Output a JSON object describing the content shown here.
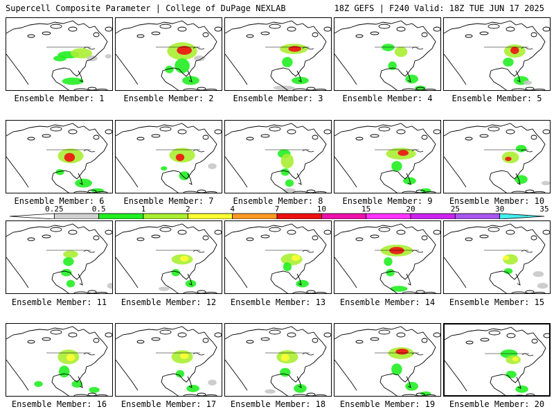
{
  "header": {
    "left": "Supercell Composite Parameter | College of DuPage NEXLAB",
    "right": "18Z GEFS | F240 Valid: 18Z TUE JUN 17 2025"
  },
  "member_label_prefix": "Ensemble Member: ",
  "members": [
    {
      "id": "1",
      "blobs": [
        [
          0.58,
          0.5,
          0.1,
          0.05,
          1
        ],
        [
          0.7,
          0.48,
          0.1,
          0.07,
          2
        ],
        [
          0.5,
          0.55,
          0.06,
          0.04,
          1
        ],
        [
          0.8,
          0.55,
          0.05,
          0.04,
          0
        ],
        [
          0.62,
          0.86,
          0.1,
          0.05,
          1
        ],
        [
          0.95,
          0.52,
          0.03,
          0.03,
          0
        ]
      ]
    },
    {
      "id": "2",
      "blobs": [
        [
          0.62,
          0.45,
          0.14,
          0.12,
          2
        ],
        [
          0.64,
          0.44,
          0.07,
          0.06,
          4
        ],
        [
          0.62,
          0.65,
          0.07,
          0.1,
          1
        ],
        [
          0.5,
          0.7,
          0.04,
          0.05,
          1
        ],
        [
          0.7,
          0.85,
          0.08,
          0.06,
          1
        ],
        [
          0.78,
          0.55,
          0.05,
          0.04,
          0
        ]
      ]
    },
    {
      "id": "3",
      "blobs": [
        [
          0.64,
          0.42,
          0.13,
          0.07,
          2
        ],
        [
          0.65,
          0.42,
          0.06,
          0.04,
          4
        ],
        [
          0.58,
          0.6,
          0.05,
          0.07,
          1
        ],
        [
          0.7,
          0.85,
          0.08,
          0.05,
          1
        ],
        [
          0.55,
          0.95,
          0.1,
          0.03,
          0
        ]
      ]
    },
    {
      "id": "4",
      "blobs": [
        [
          0.5,
          0.4,
          0.06,
          0.05,
          1
        ],
        [
          0.62,
          0.46,
          0.06,
          0.07,
          2
        ],
        [
          0.54,
          0.65,
          0.04,
          0.06,
          1
        ],
        [
          0.72,
          0.83,
          0.06,
          0.06,
          1
        ],
        [
          0.8,
          0.95,
          0.05,
          0.03,
          1
        ]
      ]
    },
    {
      "id": "5",
      "blobs": [
        [
          0.66,
          0.45,
          0.1,
          0.09,
          2
        ],
        [
          0.66,
          0.44,
          0.04,
          0.05,
          4
        ],
        [
          0.6,
          0.6,
          0.05,
          0.06,
          1
        ],
        [
          0.72,
          0.85,
          0.07,
          0.06,
          1
        ],
        [
          0.78,
          0.88,
          0.04,
          0.03,
          0
        ]
      ]
    },
    {
      "id": "6",
      "blobs": [
        [
          0.6,
          0.48,
          0.12,
          0.1,
          2
        ],
        [
          0.59,
          0.5,
          0.05,
          0.06,
          4
        ],
        [
          0.72,
          0.85,
          0.08,
          0.06,
          1
        ],
        [
          0.85,
          0.95,
          0.06,
          0.03,
          1
        ],
        [
          0.5,
          0.7,
          0.04,
          0.04,
          1
        ]
      ]
    },
    {
      "id": "7",
      "blobs": [
        [
          0.62,
          0.47,
          0.12,
          0.1,
          2
        ],
        [
          0.6,
          0.5,
          0.04,
          0.05,
          4
        ],
        [
          0.64,
          0.75,
          0.05,
          0.06,
          1
        ],
        [
          0.9,
          0.62,
          0.04,
          0.04,
          0
        ],
        [
          0.45,
          0.65,
          0.03,
          0.03,
          1
        ]
      ]
    },
    {
      "id": "8",
      "blobs": [
        [
          0.55,
          0.45,
          0.06,
          0.06,
          1
        ],
        [
          0.58,
          0.55,
          0.06,
          0.1,
          2
        ],
        [
          0.56,
          0.7,
          0.04,
          0.05,
          1
        ],
        [
          0.6,
          0.85,
          0.04,
          0.05,
          1
        ],
        [
          0.6,
          0.95,
          0.06,
          0.03,
          0
        ]
      ]
    },
    {
      "id": "9",
      "blobs": [
        [
          0.62,
          0.45,
          0.14,
          0.08,
          2
        ],
        [
          0.64,
          0.44,
          0.05,
          0.04,
          4
        ],
        [
          0.58,
          0.62,
          0.05,
          0.07,
          1
        ],
        [
          0.7,
          0.82,
          0.06,
          0.05,
          1
        ],
        [
          0.85,
          0.95,
          0.05,
          0.03,
          1
        ]
      ]
    },
    {
      "id": "10",
      "blobs": [
        [
          0.72,
          0.38,
          0.05,
          0.05,
          1
        ],
        [
          0.62,
          0.5,
          0.08,
          0.08,
          2
        ],
        [
          0.6,
          0.52,
          0.03,
          0.03,
          4
        ],
        [
          0.72,
          0.8,
          0.06,
          0.06,
          1
        ],
        [
          0.95,
          0.85,
          0.04,
          0.03,
          0
        ]
      ]
    },
    {
      "id": "11",
      "blobs": [
        [
          0.6,
          0.45,
          0.07,
          0.05,
          2
        ],
        [
          0.58,
          0.55,
          0.05,
          0.06,
          1
        ],
        [
          0.56,
          0.7,
          0.05,
          0.05,
          1
        ],
        [
          0.6,
          0.85,
          0.04,
          0.05,
          1
        ],
        [
          0.98,
          0.88,
          0.04,
          0.04,
          0
        ]
      ]
    },
    {
      "id": "12",
      "blobs": [
        [
          0.62,
          0.52,
          0.1,
          0.07,
          2
        ],
        [
          0.64,
          0.51,
          0.04,
          0.04,
          3
        ],
        [
          0.56,
          0.7,
          0.04,
          0.05,
          1
        ],
        [
          0.7,
          0.85,
          0.05,
          0.05,
          1
        ],
        [
          0.45,
          0.92,
          0.05,
          0.03,
          0
        ]
      ]
    },
    {
      "id": "13",
      "blobs": [
        [
          0.62,
          0.52,
          0.1,
          0.08,
          2
        ],
        [
          0.66,
          0.5,
          0.04,
          0.04,
          3
        ],
        [
          0.58,
          0.62,
          0.04,
          0.06,
          1
        ],
        [
          0.72,
          0.85,
          0.06,
          0.05,
          1
        ]
      ]
    },
    {
      "id": "14",
      "blobs": [
        [
          0.58,
          0.4,
          0.15,
          0.08,
          2
        ],
        [
          0.58,
          0.4,
          0.07,
          0.05,
          4
        ],
        [
          0.5,
          0.55,
          0.04,
          0.06,
          1
        ],
        [
          0.52,
          0.7,
          0.04,
          0.05,
          1
        ],
        [
          0.6,
          0.92,
          0.08,
          0.04,
          1
        ]
      ]
    },
    {
      "id": "15",
      "blobs": [
        [
          0.62,
          0.52,
          0.07,
          0.07,
          2
        ],
        [
          0.58,
          0.5,
          0.03,
          0.03,
          3
        ],
        [
          0.6,
          0.68,
          0.04,
          0.04,
          1
        ],
        [
          0.88,
          0.72,
          0.05,
          0.04,
          0
        ],
        [
          0.92,
          0.88,
          0.05,
          0.04,
          0
        ]
      ]
    },
    {
      "id": "16",
      "blobs": [
        [
          0.58,
          0.45,
          0.1,
          0.1,
          2
        ],
        [
          0.6,
          0.46,
          0.04,
          0.05,
          3
        ],
        [
          0.54,
          0.65,
          0.05,
          0.08,
          1
        ],
        [
          0.66,
          0.82,
          0.05,
          0.05,
          1
        ],
        [
          0.3,
          0.82,
          0.04,
          0.04,
          1
        ],
        [
          0.82,
          0.9,
          0.05,
          0.04,
          1
        ]
      ]
    },
    {
      "id": "17",
      "blobs": [
        [
          0.62,
          0.45,
          0.1,
          0.09,
          2
        ],
        [
          0.64,
          0.44,
          0.04,
          0.04,
          3
        ],
        [
          0.6,
          0.68,
          0.04,
          0.05,
          1
        ],
        [
          0.72,
          0.88,
          0.06,
          0.05,
          1
        ],
        [
          0.9,
          0.8,
          0.04,
          0.04,
          0
        ]
      ]
    },
    {
      "id": "18",
      "blobs": [
        [
          0.58,
          0.45,
          0.1,
          0.09,
          2
        ],
        [
          0.56,
          0.46,
          0.04,
          0.05,
          3
        ],
        [
          0.56,
          0.66,
          0.05,
          0.06,
          1
        ],
        [
          0.7,
          0.88,
          0.06,
          0.06,
          1
        ],
        [
          0.42,
          0.92,
          0.05,
          0.03,
          0
        ]
      ]
    },
    {
      "id": "19",
      "blobs": [
        [
          0.62,
          0.4,
          0.12,
          0.08,
          2
        ],
        [
          0.63,
          0.38,
          0.06,
          0.04,
          4
        ],
        [
          0.58,
          0.62,
          0.05,
          0.08,
          1
        ],
        [
          0.72,
          0.85,
          0.06,
          0.06,
          1
        ],
        [
          0.85,
          0.95,
          0.05,
          0.03,
          1
        ]
      ]
    },
    {
      "id": "20",
      "blobs": [
        [
          0.6,
          0.4,
          0.08,
          0.06,
          1
        ],
        [
          0.64,
          0.48,
          0.07,
          0.06,
          2
        ],
        [
          0.66,
          0.47,
          0.03,
          0.03,
          3
        ],
        [
          0.62,
          0.68,
          0.05,
          0.05,
          1
        ],
        [
          0.72,
          0.88,
          0.06,
          0.05,
          1
        ]
      ]
    }
  ],
  "colorbar": {
    "labels": [
      "0.25",
      "0.5",
      "1",
      "2",
      "4",
      "7",
      "10",
      "15",
      "20",
      "25",
      "30",
      "35"
    ],
    "colors": [
      "#ffffff",
      "#d0d0d0",
      "#22ee22",
      "#aaee33",
      "#ffff33",
      "#ff9922",
      "#ee1111",
      "#ee11aa",
      "#ff33ff",
      "#cc22ee",
      "#aa55ee",
      "#44eeee"
    ]
  },
  "colors": {
    "background": "#ffffff",
    "outline": "#000000",
    "scp_levels": [
      "#c8c8c8",
      "#22ee22",
      "#aaee33",
      "#ffff33",
      "#ee1111"
    ]
  }
}
